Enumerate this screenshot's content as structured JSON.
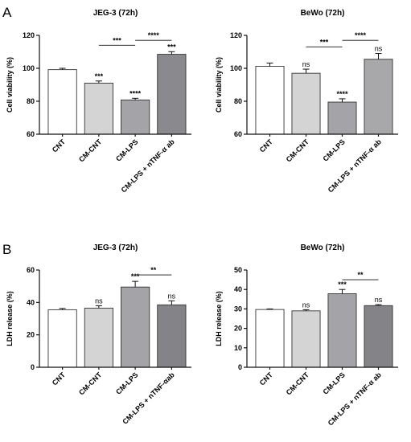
{
  "panel_letters": [
    "A",
    "B"
  ],
  "chart_data": [
    {
      "panel": "A",
      "type": "bar",
      "title": "JEG-3 (72h)",
      "ylabel": "Cell viability (%)",
      "ylim": [
        60,
        120
      ],
      "yticks": [
        60,
        80,
        100,
        120
      ],
      "categories": [
        "CNT",
        "CM-CNT",
        "CM-LPS",
        "CM-LPS + nTNF-α ab"
      ],
      "values": [
        99.2,
        91.0,
        80.8,
        108.5
      ],
      "errors": [
        0.8,
        1.3,
        1.0,
        1.6
      ],
      "bar_colors": [
        "#ffffff",
        "#d4d4d4",
        "#a4a4a8",
        "#8a8a8e"
      ],
      "significance": [
        "",
        "***",
        "****",
        "***"
      ],
      "comparisons": [
        {
          "from": 1,
          "to": 2,
          "label": "***",
          "y": 114
        },
        {
          "from": 2,
          "to": 3,
          "label": "****",
          "y": 117
        }
      ],
      "grid": false
    },
    {
      "panel": "A",
      "type": "bar",
      "title": "BeWo (72h)",
      "ylabel": "Cell viability (%)",
      "ylim": [
        60,
        120
      ],
      "yticks": [
        60,
        80,
        100,
        120
      ],
      "categories": [
        "CNT",
        "CM-CNT",
        "CM-LPS",
        "CM-LPS + nTNF-α ab"
      ],
      "values": [
        101.2,
        97.0,
        79.5,
        105.5
      ],
      "errors": [
        2.0,
        2.5,
        2.0,
        3.5
      ],
      "bar_colors": [
        "#ffffff",
        "#d4d4d4",
        "#a4a4a8",
        "#a8a8aa"
      ],
      "significance": [
        "",
        "ns",
        "****",
        "ns"
      ],
      "comparisons": [
        {
          "from": 1,
          "to": 2,
          "label": "***",
          "y": 113
        },
        {
          "from": 2,
          "to": 3,
          "label": "****",
          "y": 117
        }
      ],
      "grid": false
    },
    {
      "panel": "B",
      "type": "bar",
      "title": "JEG-3 (72h)",
      "ylabel": "LDH release (%)",
      "ylim": [
        0,
        60
      ],
      "yticks": [
        0,
        20,
        40,
        60
      ],
      "categories": [
        "CNT",
        "CM-CNT",
        "CM-LPS",
        "CM-LPS + nTNF-αab"
      ],
      "values": [
        35.5,
        36.5,
        49.5,
        38.5
      ],
      "errors": [
        0.8,
        1.5,
        3.5,
        2.5
      ],
      "bar_colors": [
        "#ffffff",
        "#d4d4d4",
        "#a4a4a8",
        "#848488"
      ],
      "significance": [
        "",
        "ns",
        "***",
        "ns"
      ],
      "comparisons": [
        {
          "from": 2,
          "to": 3,
          "label": "**",
          "y": 57
        }
      ],
      "grid": false
    },
    {
      "panel": "B",
      "type": "bar",
      "title": "BeWo (72h)",
      "ylabel": "LDH release (%)",
      "ylim": [
        0,
        50
      ],
      "yticks": [
        0,
        10,
        20,
        30,
        40,
        50
      ],
      "categories": [
        "CNT",
        "CM-CNT",
        "CM-LPS",
        "CM-LPS + nTNF-α ab"
      ],
      "values": [
        29.7,
        29.0,
        37.8,
        31.7
      ],
      "errors": [
        0.3,
        0.6,
        2.2,
        0.5
      ],
      "bar_colors": [
        "#ffffff",
        "#d4d4d4",
        "#a4a4a8",
        "#848488"
      ],
      "significance": [
        "",
        "ns",
        "***",
        "ns"
      ],
      "comparisons": [
        {
          "from": 2,
          "to": 3,
          "label": "**",
          "y": 45
        }
      ],
      "grid": false
    }
  ]
}
